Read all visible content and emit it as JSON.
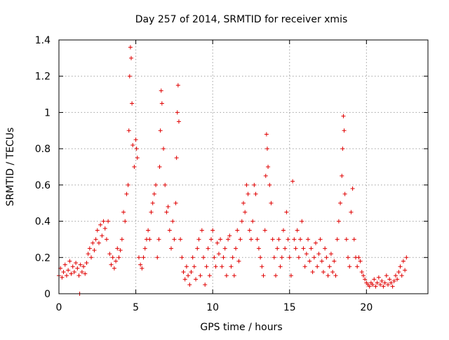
{
  "chart_data": {
    "type": "scatter",
    "title": "Day 257 of 2014, SRMTID for receiver xmis",
    "xlabel": "GPS time / hours",
    "ylabel": "SRMTID / TECUs",
    "xlim": [
      0,
      24
    ],
    "ylim": [
      0,
      1.4
    ],
    "xticks": [
      0,
      5,
      10,
      15,
      20
    ],
    "yticks": [
      0,
      0.2,
      0.4,
      0.6,
      0.8,
      1,
      1.2,
      1.4
    ],
    "xtick_labels": [
      "0",
      "5",
      "10",
      "15",
      "20"
    ],
    "ytick_labels": [
      "0",
      "0.2",
      "0.4",
      "0.6",
      "0.8",
      "1",
      "1.2",
      "1.4"
    ],
    "grid": true,
    "marker": "+",
    "color": "#e00000",
    "series": [
      {
        "name": "SRMTID",
        "points": [
          [
            0.0,
            0.1
          ],
          [
            0.1,
            0.14
          ],
          [
            0.2,
            0.09
          ],
          [
            0.3,
            0.12
          ],
          [
            0.4,
            0.16
          ],
          [
            0.5,
            0.1
          ],
          [
            0.6,
            0.13
          ],
          [
            0.7,
            0.18
          ],
          [
            0.8,
            0.11
          ],
          [
            0.9,
            0.15
          ],
          [
            1.0,
            0.12
          ],
          [
            1.1,
            0.17
          ],
          [
            1.2,
            0.14
          ],
          [
            1.3,
            0.1
          ],
          [
            1.35,
            0.0
          ],
          [
            1.4,
            0.16
          ],
          [
            1.5,
            0.12
          ],
          [
            1.6,
            0.15
          ],
          [
            1.7,
            0.11
          ],
          [
            1.8,
            0.17
          ],
          [
            1.9,
            0.22
          ],
          [
            2.0,
            0.25
          ],
          [
            2.1,
            0.2
          ],
          [
            2.2,
            0.28
          ],
          [
            2.3,
            0.24
          ],
          [
            2.4,
            0.3
          ],
          [
            2.5,
            0.35
          ],
          [
            2.6,
            0.28
          ],
          [
            2.7,
            0.38
          ],
          [
            2.8,
            0.32
          ],
          [
            2.9,
            0.4
          ],
          [
            3.0,
            0.36
          ],
          [
            3.1,
            0.3
          ],
          [
            3.2,
            0.4
          ],
          [
            3.3,
            0.22
          ],
          [
            3.4,
            0.16
          ],
          [
            3.5,
            0.2
          ],
          [
            3.6,
            0.14
          ],
          [
            3.7,
            0.18
          ],
          [
            3.8,
            0.25
          ],
          [
            3.9,
            0.2
          ],
          [
            4.0,
            0.24
          ],
          [
            4.1,
            0.3
          ],
          [
            4.2,
            0.45
          ],
          [
            4.3,
            0.4
          ],
          [
            4.4,
            0.55
          ],
          [
            4.5,
            0.6
          ],
          [
            4.55,
            0.9
          ],
          [
            4.6,
            1.2
          ],
          [
            4.65,
            1.36
          ],
          [
            4.7,
            1.3
          ],
          [
            4.75,
            1.05
          ],
          [
            4.8,
            0.82
          ],
          [
            4.9,
            0.7
          ],
          [
            5.0,
            0.85
          ],
          [
            5.05,
            0.8
          ],
          [
            5.1,
            0.75
          ],
          [
            5.2,
            0.2
          ],
          [
            5.3,
            0.16
          ],
          [
            5.4,
            0.14
          ],
          [
            5.5,
            0.2
          ],
          [
            5.6,
            0.25
          ],
          [
            5.7,
            0.3
          ],
          [
            5.8,
            0.35
          ],
          [
            5.9,
            0.3
          ],
          [
            6.0,
            0.45
          ],
          [
            6.1,
            0.5
          ],
          [
            6.2,
            0.55
          ],
          [
            6.3,
            0.6
          ],
          [
            6.4,
            0.2
          ],
          [
            6.5,
            0.3
          ],
          [
            6.55,
            0.7
          ],
          [
            6.6,
            0.9
          ],
          [
            6.65,
            1.12
          ],
          [
            6.7,
            1.05
          ],
          [
            6.8,
            0.8
          ],
          [
            6.9,
            0.6
          ],
          [
            7.0,
            0.45
          ],
          [
            7.1,
            0.48
          ],
          [
            7.2,
            0.35
          ],
          [
            7.3,
            0.25
          ],
          [
            7.4,
            0.4
          ],
          [
            7.5,
            0.3
          ],
          [
            7.6,
            0.5
          ],
          [
            7.65,
            0.75
          ],
          [
            7.7,
            1.0
          ],
          [
            7.75,
            1.15
          ],
          [
            7.8,
            0.95
          ],
          [
            7.9,
            0.3
          ],
          [
            8.0,
            0.2
          ],
          [
            8.1,
            0.12
          ],
          [
            8.2,
            0.08
          ],
          [
            8.3,
            0.15
          ],
          [
            8.4,
            0.1
          ],
          [
            8.5,
            0.05
          ],
          [
            8.6,
            0.12
          ],
          [
            8.7,
            0.2
          ],
          [
            8.8,
            0.15
          ],
          [
            8.9,
            0.08
          ],
          [
            9.0,
            0.25
          ],
          [
            9.1,
            0.3
          ],
          [
            9.2,
            0.1
          ],
          [
            9.3,
            0.35
          ],
          [
            9.4,
            0.2
          ],
          [
            9.5,
            0.05
          ],
          [
            9.6,
            0.15
          ],
          [
            9.7,
            0.25
          ],
          [
            9.8,
            0.1
          ],
          [
            9.9,
            0.3
          ],
          [
            10.0,
            0.35
          ],
          [
            10.1,
            0.2
          ],
          [
            10.2,
            0.15
          ],
          [
            10.3,
            0.28
          ],
          [
            10.4,
            0.22
          ],
          [
            10.5,
            0.3
          ],
          [
            10.6,
            0.15
          ],
          [
            10.7,
            0.2
          ],
          [
            10.8,
            0.25
          ],
          [
            10.9,
            0.1
          ],
          [
            11.0,
            0.3
          ],
          [
            11.1,
            0.32
          ],
          [
            11.2,
            0.15
          ],
          [
            11.3,
            0.2
          ],
          [
            11.4,
            0.1
          ],
          [
            11.5,
            0.25
          ],
          [
            11.6,
            0.35
          ],
          [
            11.7,
            0.18
          ],
          [
            11.8,
            0.3
          ],
          [
            11.9,
            0.4
          ],
          [
            12.0,
            0.5
          ],
          [
            12.1,
            0.45
          ],
          [
            12.2,
            0.6
          ],
          [
            12.3,
            0.55
          ],
          [
            12.4,
            0.35
          ],
          [
            12.5,
            0.3
          ],
          [
            12.6,
            0.4
          ],
          [
            12.7,
            0.6
          ],
          [
            12.8,
            0.55
          ],
          [
            12.9,
            0.3
          ],
          [
            13.0,
            0.25
          ],
          [
            13.1,
            0.2
          ],
          [
            13.2,
            0.15
          ],
          [
            13.3,
            0.1
          ],
          [
            13.4,
            0.35
          ],
          [
            13.45,
            0.65
          ],
          [
            13.5,
            0.88
          ],
          [
            13.55,
            0.8
          ],
          [
            13.6,
            0.7
          ],
          [
            13.7,
            0.6
          ],
          [
            13.8,
            0.5
          ],
          [
            13.9,
            0.3
          ],
          [
            14.0,
            0.2
          ],
          [
            14.1,
            0.1
          ],
          [
            14.2,
            0.25
          ],
          [
            14.3,
            0.3
          ],
          [
            14.4,
            0.15
          ],
          [
            14.5,
            0.2
          ],
          [
            14.6,
            0.35
          ],
          [
            14.7,
            0.25
          ],
          [
            14.8,
            0.45
          ],
          [
            14.9,
            0.3
          ],
          [
            15.0,
            0.2
          ],
          [
            15.1,
            0.1
          ],
          [
            15.2,
            0.62
          ],
          [
            15.3,
            0.3
          ],
          [
            15.4,
            0.25
          ],
          [
            15.5,
            0.35
          ],
          [
            15.6,
            0.2
          ],
          [
            15.7,
            0.3
          ],
          [
            15.8,
            0.4
          ],
          [
            15.9,
            0.25
          ],
          [
            16.0,
            0.15
          ],
          [
            16.1,
            0.22
          ],
          [
            16.2,
            0.3
          ],
          [
            16.3,
            0.18
          ],
          [
            16.4,
            0.25
          ],
          [
            16.5,
            0.12
          ],
          [
            16.6,
            0.2
          ],
          [
            16.7,
            0.28
          ],
          [
            16.8,
            0.15
          ],
          [
            16.9,
            0.22
          ],
          [
            17.0,
            0.3
          ],
          [
            17.1,
            0.18
          ],
          [
            17.2,
            0.12
          ],
          [
            17.3,
            0.25
          ],
          [
            17.4,
            0.2
          ],
          [
            17.5,
            0.1
          ],
          [
            17.6,
            0.15
          ],
          [
            17.7,
            0.22
          ],
          [
            17.8,
            0.12
          ],
          [
            17.9,
            0.18
          ],
          [
            18.0,
            0.1
          ],
          [
            18.1,
            0.3
          ],
          [
            18.2,
            0.4
          ],
          [
            18.3,
            0.5
          ],
          [
            18.4,
            0.65
          ],
          [
            18.45,
            0.8
          ],
          [
            18.5,
            0.98
          ],
          [
            18.55,
            0.9
          ],
          [
            18.6,
            0.55
          ],
          [
            18.7,
            0.3
          ],
          [
            18.8,
            0.2
          ],
          [
            18.9,
            0.15
          ],
          [
            19.0,
            0.45
          ],
          [
            19.1,
            0.58
          ],
          [
            19.2,
            0.3
          ],
          [
            19.3,
            0.2
          ],
          [
            19.4,
            0.15
          ],
          [
            19.5,
            0.2
          ],
          [
            19.6,
            0.18
          ],
          [
            19.7,
            0.12
          ],
          [
            19.8,
            0.1
          ],
          [
            19.9,
            0.08
          ],
          [
            20.0,
            0.06
          ],
          [
            20.1,
            0.05
          ],
          [
            20.2,
            0.04
          ],
          [
            20.3,
            0.06
          ],
          [
            20.4,
            0.05
          ],
          [
            20.5,
            0.08
          ],
          [
            20.6,
            0.04
          ],
          [
            20.7,
            0.06
          ],
          [
            20.8,
            0.09
          ],
          [
            20.9,
            0.05
          ],
          [
            21.0,
            0.07
          ],
          [
            21.1,
            0.04
          ],
          [
            21.2,
            0.06
          ],
          [
            21.3,
            0.1
          ],
          [
            21.4,
            0.05
          ],
          [
            21.5,
            0.08
          ],
          [
            21.6,
            0.06
          ],
          [
            21.7,
            0.04
          ],
          [
            21.8,
            0.07
          ],
          [
            21.9,
            0.1
          ],
          [
            22.0,
            0.08
          ],
          [
            22.1,
            0.12
          ],
          [
            22.2,
            0.15
          ],
          [
            22.3,
            0.1
          ],
          [
            22.4,
            0.18
          ],
          [
            22.5,
            0.13
          ],
          [
            22.6,
            0.2
          ]
        ]
      }
    ]
  }
}
